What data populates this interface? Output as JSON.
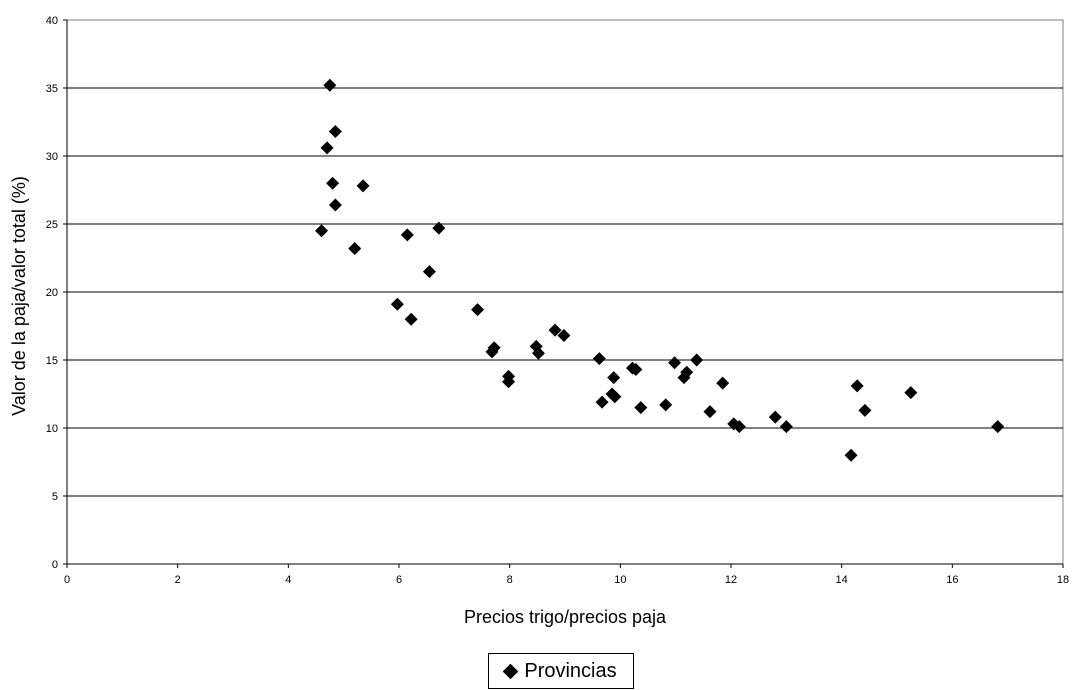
{
  "chart_data": {
    "type": "scatter",
    "xlabel": "Precios trigo/precios paja",
    "ylabel": "Valor de la paja/valor total (%)",
    "xlim": [
      0,
      18
    ],
    "ylim": [
      0,
      40
    ],
    "x_ticks": [
      "0",
      "2",
      "4",
      "6",
      "8",
      "10",
      "12",
      "14",
      "16",
      "18"
    ],
    "y_ticks": [
      "0",
      "5",
      "10",
      "15",
      "20",
      "25",
      "30",
      "35",
      "40"
    ],
    "grid": "horizontal",
    "legend_position": "bottom",
    "series": [
      {
        "name": "Provincias",
        "marker": "diamond",
        "color": "#000000",
        "points": [
          [
            4.75,
            35.2
          ],
          [
            4.85,
            31.8
          ],
          [
            4.7,
            30.6
          ],
          [
            4.8,
            28.0
          ],
          [
            4.85,
            26.4
          ],
          [
            4.6,
            24.5
          ],
          [
            5.35,
            27.8
          ],
          [
            5.2,
            23.2
          ],
          [
            6.15,
            24.2
          ],
          [
            6.72,
            24.7
          ],
          [
            6.55,
            21.5
          ],
          [
            5.97,
            19.1
          ],
          [
            6.22,
            18.0
          ],
          [
            7.42,
            18.7
          ],
          [
            7.72,
            15.9
          ],
          [
            7.68,
            15.6
          ],
          [
            8.48,
            16.0
          ],
          [
            8.52,
            15.5
          ],
          [
            8.82,
            17.2
          ],
          [
            8.98,
            16.8
          ],
          [
            7.98,
            13.8
          ],
          [
            7.98,
            13.4
          ],
          [
            9.62,
            15.1
          ],
          [
            9.88,
            13.7
          ],
          [
            9.67,
            11.9
          ],
          [
            9.85,
            12.5
          ],
          [
            9.9,
            12.3
          ],
          [
            10.22,
            14.4
          ],
          [
            10.28,
            14.3
          ],
          [
            10.37,
            11.5
          ],
          [
            10.82,
            11.7
          ],
          [
            10.98,
            14.8
          ],
          [
            11.2,
            14.1
          ],
          [
            11.15,
            13.7
          ],
          [
            11.38,
            15.0
          ],
          [
            11.62,
            11.2
          ],
          [
            11.85,
            13.3
          ],
          [
            12.05,
            10.3
          ],
          [
            12.15,
            10.1
          ],
          [
            12.8,
            10.8
          ],
          [
            13.0,
            10.1
          ],
          [
            14.17,
            8.0
          ],
          [
            14.28,
            13.1
          ],
          [
            14.42,
            11.3
          ],
          [
            15.25,
            12.6
          ],
          [
            16.82,
            10.1
          ]
        ]
      }
    ]
  }
}
